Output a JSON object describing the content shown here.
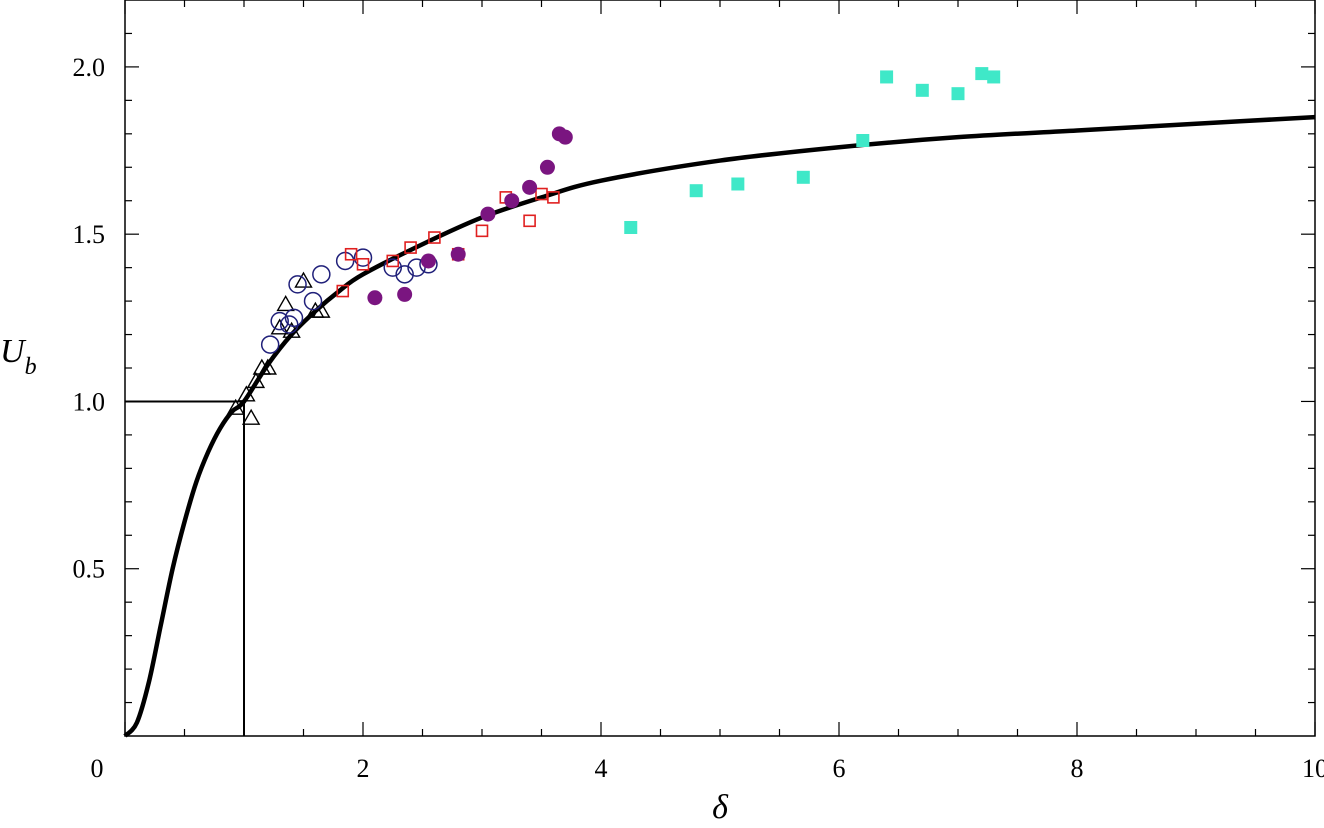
{
  "chart_data": {
    "type": "scatter",
    "title": "",
    "xlabel": "δ",
    "ylabel_main": "U",
    "ylabel_sub": "b",
    "xlim": [
      0,
      10
    ],
    "ylim": [
      0,
      2.2
    ],
    "x_ticks": [
      0,
      2,
      4,
      6,
      8,
      10
    ],
    "x_tick_labels": [
      "0",
      "2",
      "4",
      "6",
      "8",
      "10"
    ],
    "y_ticks": [
      0.5,
      1.0,
      1.5,
      2.0
    ],
    "y_tick_labels": [
      "0.5",
      "1.0",
      "1.5",
      "2.0"
    ],
    "grid": false,
    "reference_point": [
      1.0,
      1.0
    ],
    "curve": {
      "x": [
        0,
        0.1,
        0.2,
        0.3,
        0.4,
        0.5,
        0.6,
        0.7,
        0.8,
        0.9,
        1.0,
        1.2,
        1.4,
        1.6,
        1.8,
        2.0,
        2.5,
        3.0,
        3.5,
        4.0,
        5.0,
        6.0,
        7.0,
        8.0,
        9.0,
        10.0
      ],
      "y": [
        0,
        0.04,
        0.16,
        0.33,
        0.5,
        0.64,
        0.76,
        0.85,
        0.92,
        0.97,
        1.0,
        1.11,
        1.2,
        1.27,
        1.33,
        1.38,
        1.47,
        1.55,
        1.61,
        1.66,
        1.72,
        1.76,
        1.79,
        1.81,
        1.83,
        1.85
      ]
    },
    "series": [
      {
        "marker": "triangle-open",
        "color": "#000000",
        "points": [
          [
            0.93,
            0.98
          ],
          [
            1.02,
            1.02
          ],
          [
            1.06,
            0.95
          ],
          [
            1.1,
            1.06
          ],
          [
            1.15,
            1.1
          ],
          [
            1.2,
            1.1
          ],
          [
            1.3,
            1.22
          ],
          [
            1.35,
            1.29
          ],
          [
            1.4,
            1.21
          ],
          [
            1.5,
            1.36
          ],
          [
            1.6,
            1.27
          ],
          [
            1.65,
            1.27
          ]
        ]
      },
      {
        "marker": "circle-open",
        "color": "#20207a",
        "points": [
          [
            1.22,
            1.17
          ],
          [
            1.3,
            1.24
          ],
          [
            1.38,
            1.23
          ],
          [
            1.42,
            1.25
          ],
          [
            1.45,
            1.35
          ],
          [
            1.58,
            1.3
          ],
          [
            1.65,
            1.38
          ],
          [
            1.85,
            1.42
          ],
          [
            2.0,
            1.43
          ],
          [
            2.25,
            1.4
          ],
          [
            2.35,
            1.38
          ],
          [
            2.45,
            1.4
          ],
          [
            2.55,
            1.41
          ]
        ]
      },
      {
        "marker": "square-open",
        "color": "#e02020",
        "points": [
          [
            1.83,
            1.33
          ],
          [
            1.9,
            1.44
          ],
          [
            2.0,
            1.41
          ],
          [
            2.25,
            1.42
          ],
          [
            2.4,
            1.46
          ],
          [
            2.6,
            1.49
          ],
          [
            2.8,
            1.44
          ],
          [
            3.0,
            1.51
          ],
          [
            3.2,
            1.61
          ],
          [
            3.4,
            1.54
          ],
          [
            3.5,
            1.62
          ],
          [
            3.6,
            1.61
          ]
        ]
      },
      {
        "marker": "circle-filled",
        "color": "#7a1580",
        "points": [
          [
            2.1,
            1.31
          ],
          [
            2.35,
            1.32
          ],
          [
            2.55,
            1.42
          ],
          [
            2.8,
            1.44
          ],
          [
            3.05,
            1.56
          ],
          [
            3.25,
            1.6
          ],
          [
            3.4,
            1.64
          ],
          [
            3.55,
            1.7
          ],
          [
            3.65,
            1.8
          ],
          [
            3.7,
            1.79
          ]
        ]
      },
      {
        "marker": "square-filled",
        "color": "#3fe8c8",
        "points": [
          [
            4.25,
            1.52
          ],
          [
            4.8,
            1.63
          ],
          [
            5.15,
            1.65
          ],
          [
            5.7,
            1.67
          ],
          [
            6.2,
            1.78
          ],
          [
            6.4,
            1.97
          ],
          [
            6.7,
            1.93
          ],
          [
            7.0,
            1.92
          ],
          [
            7.2,
            1.98
          ],
          [
            7.3,
            1.97
          ]
        ]
      }
    ]
  }
}
